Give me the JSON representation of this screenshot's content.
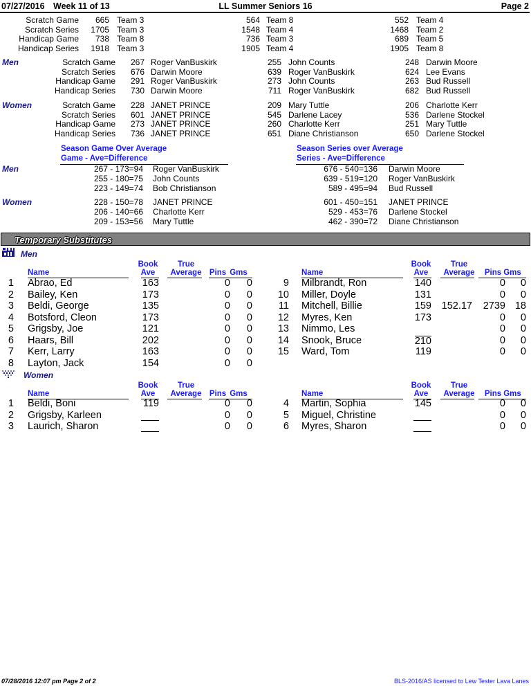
{
  "header": {
    "date": "07/27/2016",
    "week": "Week 11 of 13",
    "title": "LL Summer Seniors 16",
    "page": "Page 2"
  },
  "team_highs": [
    {
      "label": "Scratch Game",
      "entries": [
        [
          "665",
          "Team 3"
        ],
        [
          "564",
          "Team 8"
        ],
        [
          "552",
          "Team 4"
        ]
      ]
    },
    {
      "label": "Scratch Series",
      "entries": [
        [
          "1705",
          "Team 3"
        ],
        [
          "1548",
          "Team 4"
        ],
        [
          "1468",
          "Team 2"
        ]
      ]
    },
    {
      "label": "Handicap Game",
      "entries": [
        [
          "738",
          "Team 8"
        ],
        [
          "736",
          "Team 3"
        ],
        [
          "689",
          "Team 5"
        ]
      ]
    },
    {
      "label": "Handicap Series",
      "entries": [
        [
          "1918",
          "Team 3"
        ],
        [
          "1905",
          "Team 4"
        ],
        [
          "1905",
          "Team 8"
        ]
      ]
    }
  ],
  "individual_highs": [
    {
      "group": "Men",
      "rows": [
        {
          "label": "Scratch Game",
          "entries": [
            [
              "267",
              "Roger VanBuskirk"
            ],
            [
              "255",
              "John Counts"
            ],
            [
              "248",
              "Darwin Moore"
            ]
          ]
        },
        {
          "label": "Scratch Series",
          "entries": [
            [
              "676",
              "Darwin Moore"
            ],
            [
              "639",
              "Roger VanBuskirk"
            ],
            [
              "624",
              "Lee Evans"
            ]
          ]
        },
        {
          "label": "Handicap Game",
          "entries": [
            [
              "291",
              "Roger VanBuskirk"
            ],
            [
              "273",
              "John Counts"
            ],
            [
              "263",
              "Bud Russell"
            ]
          ]
        },
        {
          "label": "Handicap Series",
          "entries": [
            [
              "730",
              "Darwin Moore"
            ],
            [
              "711",
              "Roger VanBuskirk"
            ],
            [
              "682",
              "Bud Russell"
            ]
          ]
        }
      ]
    },
    {
      "group": "Women",
      "rows": [
        {
          "label": "Scratch Game",
          "entries": [
            [
              "228",
              "JANET PRINCE"
            ],
            [
              "209",
              "Mary Tuttle"
            ],
            [
              "206",
              "Charlotte Kerr"
            ]
          ]
        },
        {
          "label": "Scratch Series",
          "entries": [
            [
              "601",
              "JANET PRINCE"
            ],
            [
              "545",
              "Darlene Lacey"
            ],
            [
              "536",
              "Darlene Stockel"
            ]
          ]
        },
        {
          "label": "Handicap Game",
          "entries": [
            [
              "273",
              "JANET PRINCE"
            ],
            [
              "260",
              "Charlotte Kerr"
            ],
            [
              "251",
              "Mary Tuttle"
            ]
          ]
        },
        {
          "label": "Handicap Series",
          "entries": [
            [
              "736",
              "JANET PRINCE"
            ],
            [
              "651",
              "Diane Christianson"
            ],
            [
              "650",
              "Darlene Stockel"
            ]
          ]
        }
      ]
    }
  ],
  "over_average": {
    "game_title": "Season Game Over Average",
    "game_sub": "Game - Ave=Difference",
    "series_title": "Season Series over Average",
    "series_sub": "Series - Ave=Difference",
    "groups": [
      {
        "group": "Men",
        "game": [
          [
            "267 - 173=94",
            "Roger VanBuskirk"
          ],
          [
            "255 - 180=75",
            "John Counts"
          ],
          [
            "223 - 149=74",
            "Bob Christianson"
          ]
        ],
        "series": [
          [
            "676 - 540=136",
            "Darwin Moore"
          ],
          [
            "639 - 519=120",
            "Roger VanBuskirk"
          ],
          [
            "589 - 495=94",
            "Bud Russell"
          ]
        ]
      },
      {
        "group": "Women",
        "game": [
          [
            "228 - 150=78",
            "JANET PRINCE"
          ],
          [
            "206 - 140=66",
            "Charlotte Kerr"
          ],
          [
            "209 - 153=56",
            "Mary Tuttle"
          ]
        ],
        "series": [
          [
            "601 - 450=151",
            "JANET PRINCE"
          ],
          [
            "529 - 453=76",
            "Darlene Stockel"
          ],
          [
            "462 - 390=72",
            "Diane Christianson"
          ]
        ]
      }
    ]
  },
  "subs": {
    "title": "Temporary Substitutes",
    "columns": {
      "name": "Name",
      "book": "Book",
      "ave": "Ave",
      "true": "True",
      "average": "Average",
      "pins": "Pins",
      "gms": "Gms"
    },
    "groups": [
      {
        "group": "Men",
        "icon": "men-icon",
        "left": [
          {
            "n": "1",
            "name": "Abrao, Ed",
            "ave": "163",
            "true": "",
            "pins": "0",
            "gms": "0"
          },
          {
            "n": "2",
            "name": "Bailey, Ken",
            "ave": "173",
            "true": "",
            "pins": "0",
            "gms": "0"
          },
          {
            "n": "3",
            "name": "Beldi, George",
            "ave": "135",
            "true": "",
            "pins": "0",
            "gms": "0"
          },
          {
            "n": "4",
            "name": "Botsford, Cleon",
            "ave": "173",
            "true": "",
            "pins": "0",
            "gms": "0"
          },
          {
            "n": "5",
            "name": "Grigsby, Joe",
            "ave": "121",
            "true": "",
            "pins": "0",
            "gms": "0"
          },
          {
            "n": "6",
            "name": "Haars, Bill",
            "ave": "202",
            "true": "",
            "pins": "0",
            "gms": "0"
          },
          {
            "n": "7",
            "name": "Kerr, Larry",
            "ave": "163",
            "true": "",
            "pins": "0",
            "gms": "0"
          },
          {
            "n": "8",
            "name": "Layton, Jack",
            "ave": "154",
            "true": "",
            "pins": "0",
            "gms": "0"
          }
        ],
        "right": [
          {
            "n": "9",
            "name": "Milbrandt, Ron",
            "ave": "140",
            "true": "",
            "pins": "0",
            "gms": "0"
          },
          {
            "n": "10",
            "name": "Miller, Doyle",
            "ave": "131",
            "true": "",
            "pins": "0",
            "gms": "0"
          },
          {
            "n": "11",
            "name": "Mitchell, Billie",
            "ave": "159",
            "true": "152.17",
            "pins": "2739",
            "gms": "18"
          },
          {
            "n": "12",
            "name": "Myres, Ken",
            "ave": "173",
            "true": "",
            "pins": "0",
            "gms": "0"
          },
          {
            "n": "13",
            "name": "Nimmo, Les",
            "ave": "",
            "true": "",
            "pins": "0",
            "gms": "0"
          },
          {
            "n": "14",
            "name": "Snook, Bruce",
            "ave": "210",
            "ave_mark": "overline",
            "true": "",
            "pins": "0",
            "gms": "0"
          },
          {
            "n": "15",
            "name": "Ward, Tom",
            "ave": "119",
            "true": "",
            "pins": "0",
            "gms": "0"
          }
        ]
      },
      {
        "group": "Women",
        "icon": "women-icon",
        "left": [
          {
            "n": "1",
            "name": "Beldi, Boni",
            "ave": "119",
            "true": "",
            "pins": "0",
            "gms": "0"
          },
          {
            "n": "2",
            "name": "Grigsby, Karleen",
            "ave": "",
            "true": "",
            "pins": "0",
            "gms": "0"
          },
          {
            "n": "3",
            "name": "Laurich, Sharon",
            "ave": "",
            "true": "",
            "pins": "0",
            "gms": "0"
          }
        ],
        "right": [
          {
            "n": "4",
            "name": "Martin, Sophia",
            "ave": "145",
            "true": "",
            "pins": "0",
            "gms": "0"
          },
          {
            "n": "5",
            "name": "Miguel, Christine",
            "ave": "",
            "true": "",
            "pins": "0",
            "gms": "0"
          },
          {
            "n": "6",
            "name": "Myres, Sharon",
            "ave": "",
            "true": "",
            "pins": "0",
            "gms": "0"
          }
        ]
      }
    ]
  },
  "footer": {
    "printed": "07/28/2016  12:07 pm  Page 2 of 2",
    "license": "BLS-2016/AS licensed to Lew Tester  Lava Lanes"
  }
}
